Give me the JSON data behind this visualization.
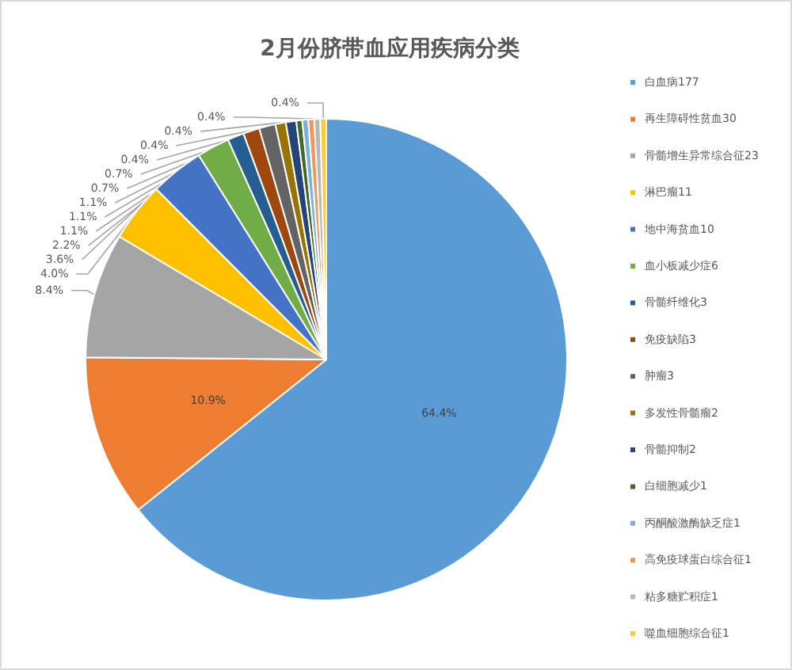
{
  "chart_data": {
    "type": "pie",
    "title": "2月份脐带血应用疾病分类",
    "categories": [
      "白血病177",
      "再生障碍性贫血30",
      "骨髓增生异常综合征23",
      "淋巴瘤11",
      "地中海贫血10",
      "血小板减少症6",
      "骨髓纤维化3",
      "免疫缺陷3",
      "肿瘤3",
      "多发性骨髓瘤2",
      "骨髓抑制2",
      "白细胞减少1",
      "丙酮酸激酶缺乏症1",
      "高免疫球蛋白综合征1",
      "粘多糖贮积症1",
      "噬血细胞综合征1"
    ],
    "values": [
      64.4,
      10.9,
      8.4,
      4.0,
      3.6,
      2.2,
      1.1,
      1.1,
      1.1,
      0.7,
      0.7,
      0.4,
      0.4,
      0.4,
      0.4,
      0.4
    ],
    "value_labels": [
      "64.4%",
      "10.9%",
      "8.4%",
      "4.0%",
      "3.6%",
      "2.2%",
      "1.1%",
      "1.1%",
      "1.1%",
      "0.7%",
      "0.7%",
      "0.4%",
      "0.4%",
      "0.4%",
      "0.4%",
      "0.4%"
    ],
    "colors": [
      "#5b9bd5",
      "#ed7d31",
      "#a5a5a5",
      "#ffc000",
      "#4472c4",
      "#70ad47",
      "#255e91",
      "#9e480e",
      "#636363",
      "#997300",
      "#264478",
      "#43682b",
      "#7cafdd",
      "#f1975a",
      "#b7b7b7",
      "#ffcd33"
    ],
    "legend": "right"
  }
}
